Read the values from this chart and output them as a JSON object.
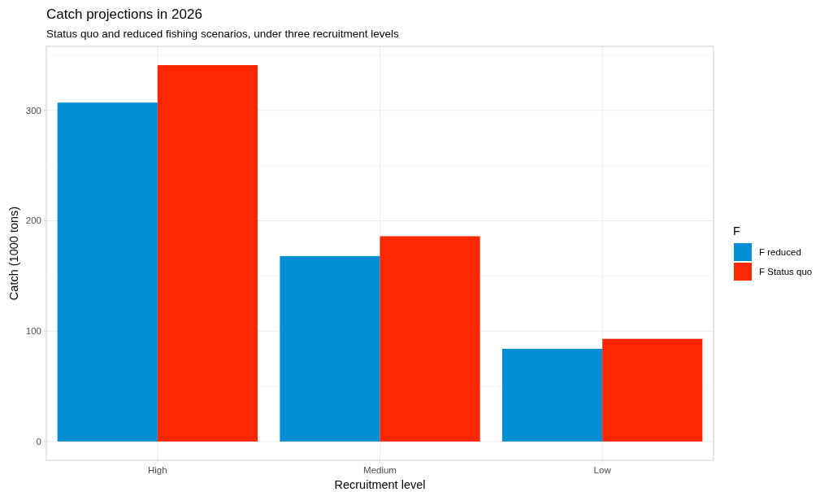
{
  "chart_data": {
    "type": "bar",
    "title": "Catch projections in 2026",
    "subtitle": "Status quo and reduced fishing scenarios, under three recruitment levels",
    "xlabel": "Recruitment level",
    "ylabel": "Catch (1000 tons)",
    "legend_title": "F",
    "categories": [
      "High",
      "Medium",
      "Low"
    ],
    "series": [
      {
        "name": "F reduced",
        "color": "#008fd5",
        "values": [
          307,
          168,
          84
        ]
      },
      {
        "name": "F Status quo",
        "color": "#ff2700",
        "values": [
          341,
          186,
          93
        ]
      }
    ],
    "ylim": [
      -17,
      358
    ],
    "yticks": [
      0,
      100,
      200,
      300
    ],
    "grid": true,
    "legend": "right"
  }
}
